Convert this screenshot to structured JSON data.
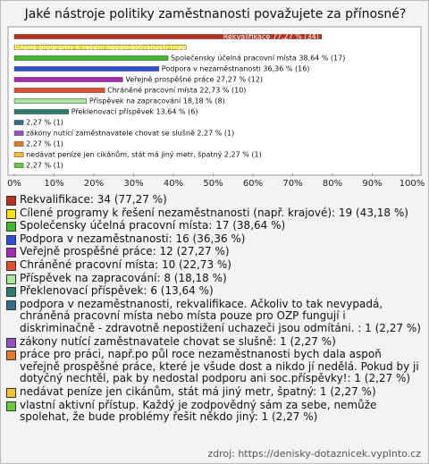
{
  "chart_data": {
    "type": "hbar",
    "title": "Jaké nástroje politiky zaměstnanosti považujete za přínosné?",
    "categories": [
      "Rekvalifikace",
      "Cílené programy k řešení nezaměstnanosti (např. krajové)",
      "Společensky účelná pracovní místa",
      "Podpora v nezaměstnanosti",
      "Veřejně prospěšné práce",
      "Chráněné pracovní místa",
      "Příspěvek na zapracování",
      "Překlenovací příspěvek",
      null,
      "zákony nutící zaměstnavatele chovat se slušně",
      null,
      "nedávat peníze jen cikánům, stát má jiný metr, špatný",
      null
    ],
    "values": [
      77.27,
      43.18,
      38.64,
      36.36,
      27.27,
      22.73,
      18.18,
      13.64,
      2.27,
      2.27,
      2.27,
      2.27,
      2.27
    ],
    "counts": [
      34,
      19,
      17,
      16,
      12,
      10,
      8,
      6,
      1,
      1,
      1,
      1,
      1
    ],
    "value_labels": [
      "Rekvalifikace 77,27 % (34)",
      "Cílené programy k řešení nezaměstnanosti (např. krajové) 43,18 % (19)",
      "Společensky účelná pracovní místa 38,64 % (17)",
      "Podpora v nezaměstnanosti 36,36 % (16)",
      "Veřejně prospěšné práce 27,27 % (12)",
      "Chráněné pracovní místa 22,73 % (10)",
      "Příspěvek na zapracování 18,18 % (8)",
      "Překlenovací příspěvek 13,64 % (6)",
      "2,27 % (1)",
      "zákony nutící zaměstnavatele chovat se slušně 2,27 % (1)",
      "2,27 % (1)",
      "nedávat peníze jen cikánům, stát má jiný metr, špatný 2,27 % (1)",
      "2,27 % (1)"
    ],
    "colors": [
      "#b8311c",
      "#f2e21a",
      "#3fb82a",
      "#2f4fd6",
      "#a62ab4",
      "#e4502c",
      "#a9e89a",
      "#2a7d6c",
      "#2f6f8a",
      "#9650c4",
      "#e57a2c",
      "#efc234",
      "#66cc3e"
    ],
    "xlim": [
      0,
      100
    ],
    "xticks": [
      {
        "value": 0,
        "label": "0%"
      },
      {
        "value": 10,
        "label": "10%"
      },
      {
        "value": 20,
        "label": "20%"
      },
      {
        "value": 30,
        "label": "30%"
      },
      {
        "value": 40,
        "label": "40%"
      },
      {
        "value": 50,
        "label": "50%"
      },
      {
        "value": 60,
        "label": "60%"
      },
      {
        "value": 70,
        "label": "70%"
      },
      {
        "value": 80,
        "label": "80%"
      },
      {
        "value": 90,
        "label": "90%"
      },
      {
        "value": 100,
        "label": "100%"
      }
    ],
    "legend": [
      "Rekvalifikace: 34 (77,27 %)",
      "Cílené programy k řešení nezaměstnanosti (např. krajové): 19 (43,18 %)",
      "Společensky účelná pracovní místa: 17 (38,64 %)",
      "Podpora v nezaměstnanosti: 16 (36,36 %)",
      "Veřejně prospěšné práce: 12 (27,27 %)",
      "Chráněné pracovní místa: 10 (22,73 %)",
      "Příspěvek na zapracování: 8 (18,18 %)",
      "Překlenovací příspěvek: 6 (13,64 %)",
      "podpora v nezaměstnanosti, rekvalifikace. Ačkoliv to tak nevypadá, chráněná pracovní místa nebo místa pouze pro OZP fungují i diskriminačně - zdravotně nepostižení uchazeči jsou odmítáni. : 1 (2,27 %)",
      "zákony nutící zaměstnavatele chovat se slušně: 1 (2,27 %)",
      "práce pro práci, např.po půl roce nezaměstnanosti bych dala aspoň veřejně prospěšné práce, které je všude dost a nikdo jí nedělá. Pokud by ji dotyčný nechtěl, pak by nedostal podporu ani soc.příspěvky!: 1 (2,27 %)",
      "nedávat peníze jen cikánům, stát má jiný metr, špatný: 1 (2,27 %)",
      "vlastní aktivní přístup. Každý je zodpovědný sám za sebe, nemůže spolehat, že bude problémy řešit někdo jiný: 1 (2,27 %)"
    ],
    "source": "zdroj: https://denisky-dotaznicek.vyplnto.cz"
  }
}
